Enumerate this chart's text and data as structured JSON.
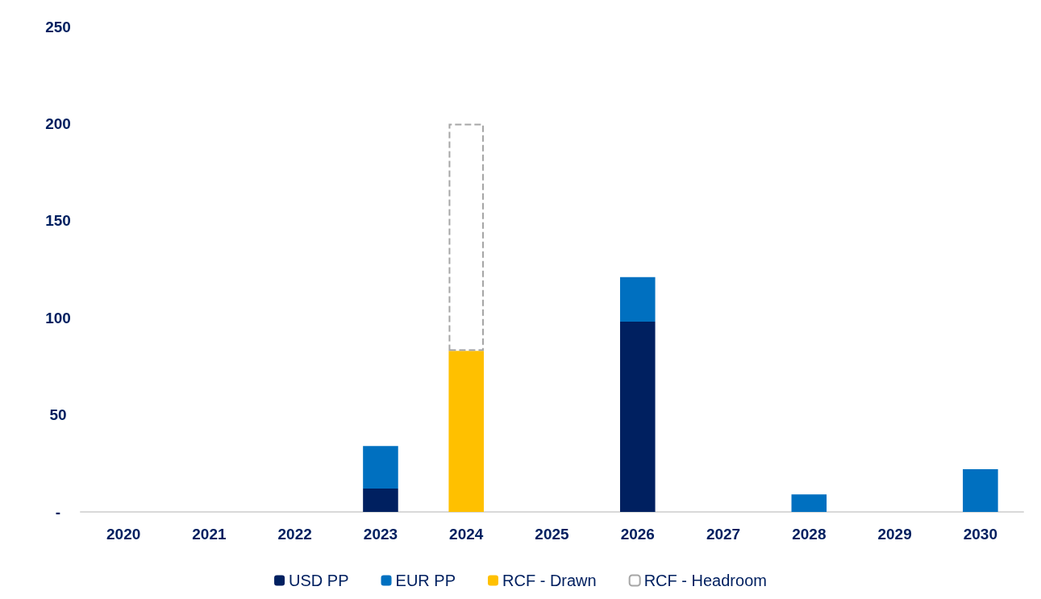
{
  "chart_data": {
    "type": "bar",
    "stacked": true,
    "categories": [
      "2020",
      "2021",
      "2022",
      "2023",
      "2024",
      "2025",
      "2026",
      "2027",
      "2028",
      "2029",
      "2030"
    ],
    "series": [
      {
        "name": "USD PP",
        "color": "#002060",
        "values": [
          null,
          null,
          null,
          12,
          null,
          null,
          98,
          null,
          null,
          null,
          null
        ]
      },
      {
        "name": "EUR PP",
        "color": "#0070c0",
        "values": [
          null,
          null,
          null,
          22,
          null,
          null,
          23,
          null,
          9,
          null,
          22
        ]
      },
      {
        "name": "RCF - Drawn",
        "color": "#ffc000",
        "values": [
          null,
          null,
          null,
          null,
          83,
          null,
          null,
          null,
          null,
          null,
          null
        ]
      },
      {
        "name": "RCF - Headroom",
        "color": "#ffffff",
        "line_style": "dashed",
        "values": [
          null,
          null,
          null,
          null,
          117,
          null,
          null,
          null,
          null,
          null,
          null
        ]
      }
    ],
    "ylim": [
      0,
      250
    ],
    "yticks": [
      {
        "value": 0,
        "label": "-"
      },
      50,
      100,
      150,
      200,
      250
    ],
    "grid": false,
    "legend": "bottom"
  }
}
